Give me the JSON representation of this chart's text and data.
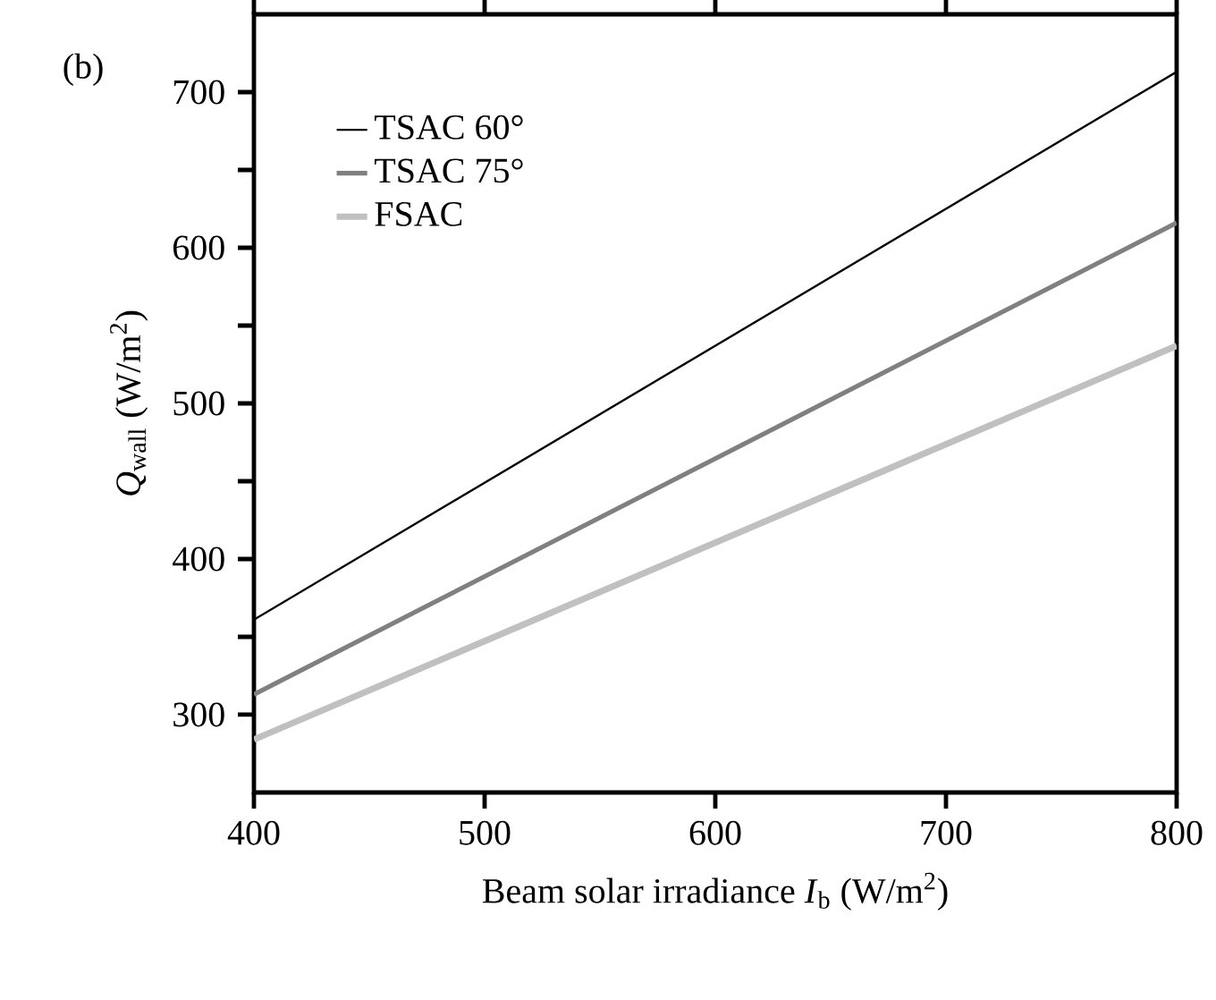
{
  "chart_data": {
    "type": "line",
    "xlabel": "Beam solar irradiance *I*$_{b}$ (W/m$^{2}$)",
    "ylabel": "*Q*$_{wall}$ (W/m$^{2}$)",
    "annotations": [
      "(b)"
    ],
    "x": [
      400,
      800
    ],
    "series": [
      {
        "name": "TSAC 60°",
        "color": "#000000",
        "values": [
          361,
          713
        ]
      },
      {
        "name": "TSAC 75°",
        "color": "#808080",
        "values": [
          313,
          616
        ]
      },
      {
        "name": "FSAC",
        "color": "#c0c0c0",
        "values": [
          284,
          537
        ]
      }
    ],
    "xlim": [
      400,
      800
    ],
    "ylim": [
      250,
      750
    ],
    "xticks": [
      400,
      500,
      600,
      700,
      800
    ],
    "yticks": [
      300,
      {
        "value": 350,
        "label": null
      },
      400,
      {
        "value": 450,
        "label": null
      },
      500,
      {
        "value": 550,
        "label": null
      },
      600,
      {
        "value": 650,
        "label": null
      },
      700
    ],
    "grid": false,
    "legend": "top left",
    "marker": "none",
    "line_style": "solid"
  }
}
